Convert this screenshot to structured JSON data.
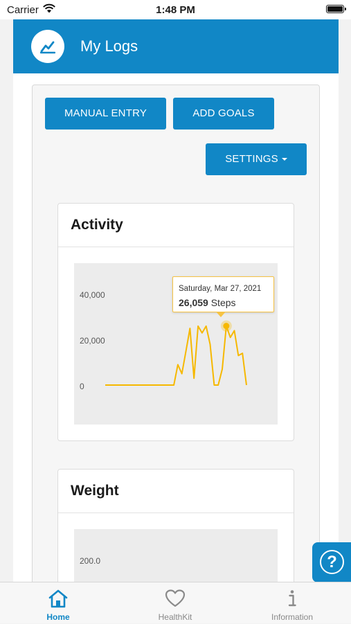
{
  "status_bar": {
    "carrier": "Carrier",
    "time": "1:48 PM"
  },
  "header": {
    "title": "My Logs",
    "icon": "chart-line-icon"
  },
  "buttons": {
    "manual_entry": "MANUAL ENTRY",
    "add_goals": "ADD GOALS",
    "settings": "SETTINGS"
  },
  "activity": {
    "title": "Activity",
    "tooltip": {
      "date": "Saturday, Mar 27, 2021",
      "value": "26,059",
      "unit": "Steps"
    }
  },
  "weight": {
    "title": "Weight",
    "y_tick": "200.0"
  },
  "help": {
    "label": "?"
  },
  "tabbar": {
    "tabs": [
      {
        "label": "Home",
        "active": true,
        "icon": "home-icon"
      },
      {
        "label": "HealthKit",
        "active": false,
        "icon": "heart-icon"
      },
      {
        "label": "Information",
        "active": false,
        "icon": "info-icon"
      }
    ]
  },
  "colors": {
    "brand": "#1187c6",
    "series": "#f6b800",
    "tooltip_border": "#f6c343"
  },
  "chart_data": [
    {
      "type": "line",
      "title": "Activity",
      "y_ticks": [
        "40,000",
        "20,000",
        "0"
      ],
      "ylim": [
        0,
        40000
      ],
      "grid": false,
      "series": [
        {
          "values": [
            0,
            0,
            0,
            0,
            0,
            0,
            0,
            0,
            0,
            0,
            0,
            0,
            0,
            0,
            0,
            0,
            0,
            0,
            9000,
            5000,
            15000,
            25000,
            3000,
            26000,
            23000,
            26000,
            18000,
            0,
            0,
            7000,
            26059,
            21000,
            24000,
            13000,
            14000,
            0
          ]
        }
      ],
      "highlight": {
        "index": 30,
        "date": "Saturday, Mar 27, 2021",
        "value": 26059
      }
    },
    {
      "type": "line",
      "title": "Weight",
      "y_ticks": [
        "200.0"
      ]
    }
  ]
}
